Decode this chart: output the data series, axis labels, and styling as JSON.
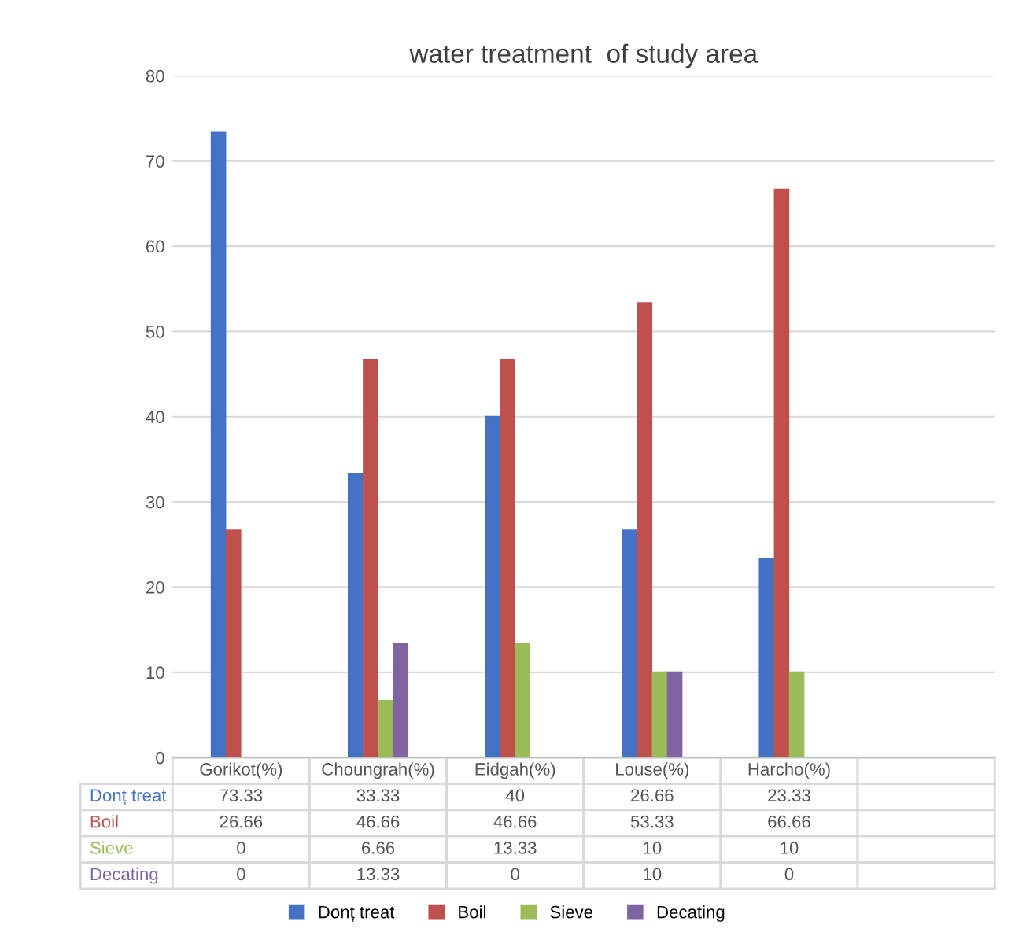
{
  "chart_data": {
    "type": "bar",
    "title": "water treatment  of study area",
    "categories": [
      "Gorikot(%)",
      "Choungrah(%)",
      "Eidgah(%)",
      "Louse(%)",
      "Harcho(%)",
      null
    ],
    "series": [
      {
        "name": "Donț treat",
        "color": "#4472c4",
        "values": [
          73.33,
          33.33,
          40,
          26.66,
          23.33,
          null
        ]
      },
      {
        "name": "Boil",
        "color": "#c0504d",
        "values": [
          26.66,
          46.66,
          46.66,
          53.33,
          66.66,
          null
        ]
      },
      {
        "name": "Sieve",
        "color": "#9bbb59",
        "values": [
          0,
          6.66,
          13.33,
          10,
          10,
          null
        ]
      },
      {
        "name": "Decating",
        "color": "#8064a2",
        "values": [
          0,
          13.33,
          0,
          10,
          0,
          null
        ]
      }
    ],
    "ylim": [
      0,
      80
    ],
    "yticks": [
      0,
      10,
      20,
      30,
      40,
      50,
      60,
      70,
      80
    ],
    "grid": "y",
    "legend": "bottom",
    "data_labels": true
  }
}
